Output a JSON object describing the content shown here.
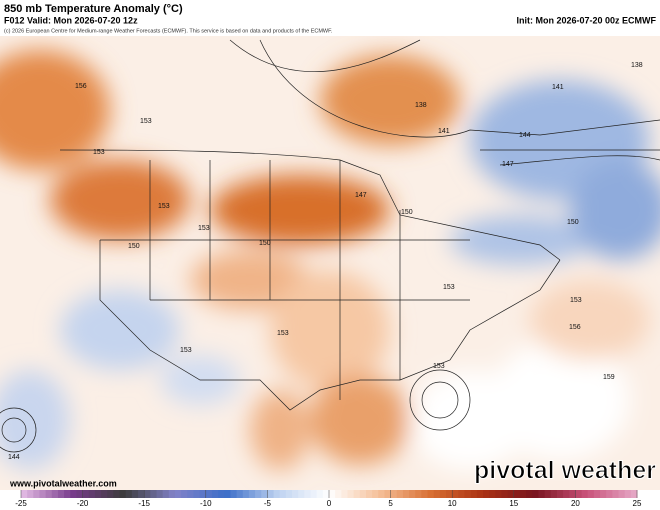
{
  "header": {
    "title": "850 mb Temperature Anomaly (°C)",
    "valid": "F012 Valid: Mon 2026-07-20 12z",
    "init": "Init: Mon 2026-07-20 00z ECMWF",
    "credit": "(c) 2026 European Centre for Medium-range Weather Forecasts (ECMWF). This service is based on data and products of the ECMWF."
  },
  "map": {
    "contour_labels": [
      "156",
      "153",
      "153",
      "153",
      "150",
      "153",
      "150",
      "147",
      "150",
      "138",
      "141",
      "144",
      "147",
      "141",
      "138",
      "150",
      "153",
      "153",
      "156",
      "153",
      "153",
      "153",
      "159",
      "144"
    ]
  },
  "footer": {
    "website": "www.pivotalweather.com",
    "watermark": "pivotal weather"
  },
  "colorbar": {
    "ticks": [
      -25,
      -20,
      -15,
      -10,
      -5,
      0,
      5,
      10,
      15,
      20,
      25
    ]
  }
}
